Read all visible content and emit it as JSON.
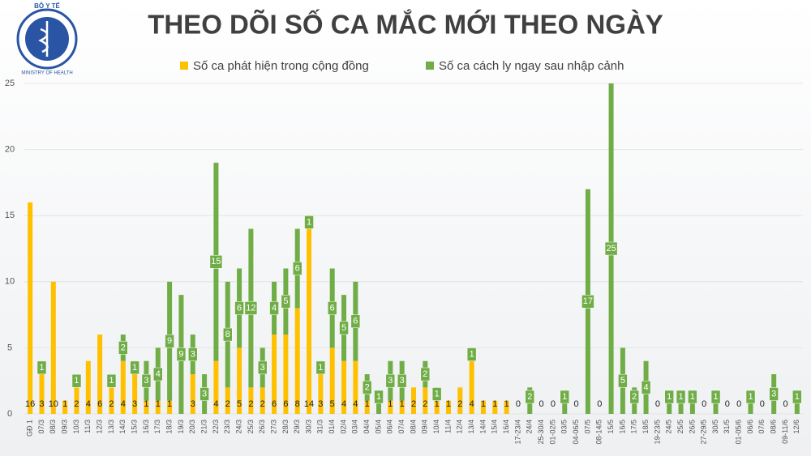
{
  "logo": {
    "top": "BỘ Y TẾ",
    "bottom": "MINISTRY OF HEALTH"
  },
  "chart_data": {
    "type": "stacked-bar",
    "title": "THEO DÕI SỐ CA MẮC MỚI THEO NGÀY",
    "categories": [
      "GĐ 1",
      "07/3",
      "08/3",
      "09/3",
      "10/3",
      "11/3",
      "12/3",
      "13/3",
      "14/3",
      "15/3",
      "16/3",
      "17/3",
      "18/3",
      "19/3",
      "20/3",
      "21/3",
      "22/3",
      "23/3",
      "24/3",
      "25/3",
      "26/3",
      "27/3",
      "28/3",
      "29/3",
      "30/3",
      "31/3",
      "01/4",
      "02/4",
      "03/4",
      "04/4",
      "05/4",
      "06/4",
      "07/4",
      "08/4",
      "09/4",
      "10/4",
      "11/4",
      "12/4",
      "13/4",
      "14/4",
      "15/4",
      "16/4",
      "17-23/4",
      "24/4",
      "25-30/4",
      "01-02/5",
      "03/5",
      "04-06/5",
      "07/5",
      "08-14/5",
      "15/5",
      "16/5",
      "17/5",
      "18/5",
      "19-23/5",
      "24/5",
      "25/5",
      "26/5",
      "27-29/5",
      "30/5",
      "31/5",
      "01-05/6",
      "06/6",
      "07/6",
      "08/6",
      "09-11/6",
      "12/6"
    ],
    "series": [
      {
        "name": "Số ca phát hiện trong cộng đồng",
        "color": "#ffc000",
        "values": [
          16,
          3,
          10,
          1,
          2,
          4,
          6,
          2,
          4,
          3,
          1,
          1,
          1,
          0,
          3,
          0,
          4,
          2,
          5,
          2,
          2,
          6,
          6,
          8,
          14,
          3,
          5,
          4,
          4,
          1,
          0,
          1,
          1,
          2,
          2,
          1,
          1,
          2,
          4,
          1,
          1,
          1,
          0,
          0,
          0,
          0,
          0,
          0,
          0,
          0,
          0,
          0,
          0,
          0,
          0,
          0,
          0,
          0,
          0,
          0,
          0,
          0,
          0,
          0,
          0,
          0,
          0
        ]
      },
      {
        "name": "Số ca cách ly ngay sau nhập cảnh",
        "color": "#70ad47",
        "values": [
          0,
          1,
          0,
          0,
          1,
          0,
          0,
          1,
          2,
          1,
          3,
          4,
          9,
          9,
          3,
          3,
          15,
          8,
          6,
          12,
          3,
          4,
          5,
          6,
          1,
          1,
          6,
          5,
          6,
          2,
          1,
          3,
          3,
          0,
          2,
          1,
          0,
          0,
          1,
          0,
          0,
          0,
          0,
          2,
          0,
          0,
          1,
          0,
          17,
          0,
          25,
          5,
          2,
          4,
          0,
          1,
          1,
          1,
          0,
          1,
          0,
          0,
          1,
          0,
          3,
          0,
          1
        ]
      }
    ],
    "ylim": [
      0,
      25
    ],
    "yticks": [
      0,
      5,
      10,
      15,
      20,
      25
    ],
    "grid": true
  }
}
